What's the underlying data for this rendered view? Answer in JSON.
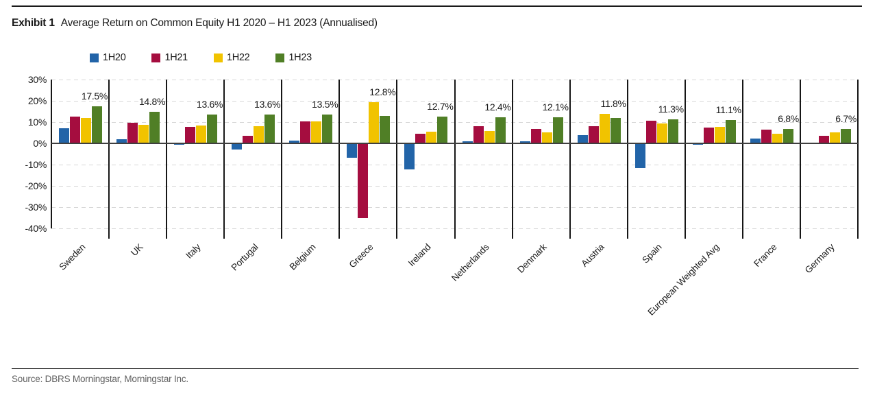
{
  "header": {
    "exhibit_label": "Exhibit 1",
    "title": "Average Return on Common Equity H1 2020 – H1 2023 (Annualised)"
  },
  "footer": {
    "source": "Source: DBRS Morningstar, Morningstar Inc."
  },
  "colors": {
    "h1_2020_blue": "#2264A8",
    "h1_2021_red": "#A50D3F",
    "h1_2022_yellow": "#F1C300",
    "h1_2023_green": "#507F26",
    "zero_axis": "#3f3f3f",
    "grid": "#d6d6d6"
  },
  "chart_data": {
    "type": "bar",
    "title": "Average Return on Common Equity H1 2020 – H1 2023 (Annualised)",
    "categories": [
      "Sweden",
      "UK",
      "Italy",
      "Portugal",
      "Belgium",
      "Greece",
      "Ireland",
      "Netherlands",
      "Denmark",
      "Austria",
      "Spain",
      "European Weighted Avg",
      "France",
      "Germany"
    ],
    "series": [
      {
        "name": "1H20",
        "color": "#2264A8",
        "values": [
          7.0,
          1.8,
          -0.8,
          -3.0,
          1.2,
          -6.8,
          -12.3,
          1.1,
          1.0,
          3.8,
          -11.5,
          -0.5,
          2.2,
          -0.3
        ]
      },
      {
        "name": "1H21",
        "color": "#A50D3F",
        "values": [
          12.5,
          9.7,
          7.8,
          3.5,
          10.2,
          -35.0,
          4.5,
          8.1,
          6.8,
          8.1,
          10.5,
          7.4,
          6.4,
          3.6
        ]
      },
      {
        "name": "1H22",
        "color": "#F1C300",
        "values": [
          12.0,
          8.8,
          8.4,
          8.1,
          10.4,
          19.4,
          5.5,
          5.7,
          5.2,
          13.9,
          9.5,
          7.7,
          4.6,
          5.3
        ]
      },
      {
        "name": "1H23",
        "color": "#507F26",
        "values": [
          17.5,
          14.8,
          13.6,
          13.6,
          13.5,
          12.8,
          12.7,
          12.4,
          12.1,
          11.8,
          11.3,
          11.1,
          6.8,
          6.7
        ]
      }
    ],
    "bar_labels": [
      "17.5%",
      "14.8%",
      "13.6%",
      "13.6%",
      "13.5%",
      "12.8%",
      "12.7%",
      "12.4%",
      "12.1%",
      "11.8%",
      "11.3%",
      "11.1%",
      "6.8%",
      "6.7%"
    ],
    "y_ticks": [
      {
        "value": 30,
        "label": "30%"
      },
      {
        "value": 20,
        "label": "20%"
      },
      {
        "value": 10,
        "label": "10%"
      },
      {
        "value": 0,
        "label": "0%"
      },
      {
        "value": -10,
        "label": "-10%"
      },
      {
        "value": -20,
        "label": "-20%"
      },
      {
        "value": -30,
        "label": "-30%"
      },
      {
        "value": -40,
        "label": "-40%"
      }
    ],
    "ylim": [
      -40,
      30
    ],
    "xlabel": "",
    "ylabel": "",
    "grid": "horizontal-dashed",
    "legend_position": "top-left"
  }
}
